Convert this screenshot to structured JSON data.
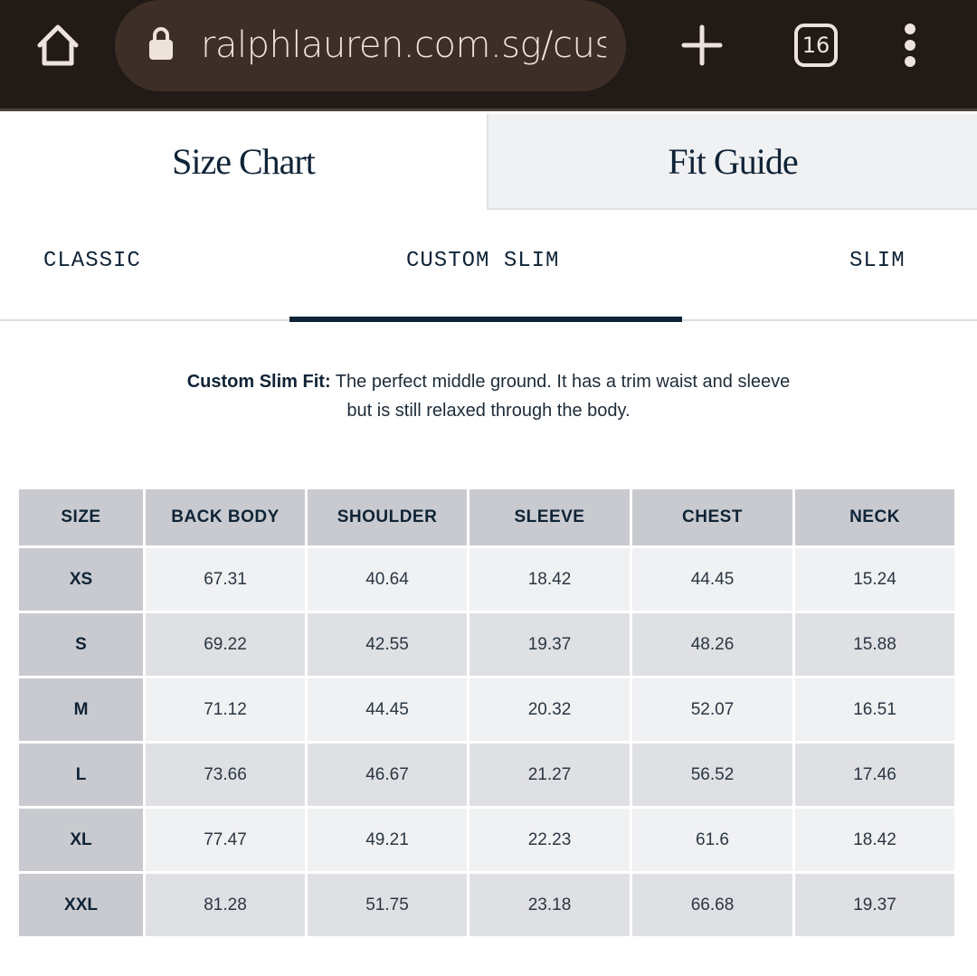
{
  "browser": {
    "url": "ralphlauren.com.sg/custom",
    "tab_count": "16",
    "icons": [
      "home-icon",
      "lock-icon",
      "plus-icon",
      "tabs-icon",
      "more-icon"
    ]
  },
  "tabs": [
    {
      "label": "Size Chart",
      "active": true
    },
    {
      "label": "Fit Guide",
      "active": false
    }
  ],
  "fits": [
    {
      "label": "CLASSIC"
    },
    {
      "label": "CUSTOM SLIM",
      "active": true
    },
    {
      "label": "SLIM"
    }
  ],
  "description": {
    "title": "Custom Slim Fit:",
    "line1": " The perfect middle ground. It has a trim waist and sleeve",
    "line2": "but is still relaxed through the body."
  },
  "table": {
    "headers": [
      "SIZE",
      "BACK BODY",
      "SHOULDER",
      "SLEEVE",
      "CHEST",
      "NECK"
    ],
    "rows": [
      [
        "XS",
        "67.31",
        "40.64",
        "18.42",
        "44.45",
        "15.24"
      ],
      [
        "S",
        "69.22",
        "42.55",
        "19.37",
        "48.26",
        "15.88"
      ],
      [
        "M",
        "71.12",
        "44.45",
        "20.32",
        "52.07",
        "16.51"
      ],
      [
        "L",
        "73.66",
        "46.67",
        "21.27",
        "56.52",
        "17.46"
      ],
      [
        "XL",
        "77.47",
        "49.21",
        "22.23",
        "61.6",
        "18.42"
      ],
      [
        "XXL",
        "81.28",
        "51.75",
        "23.18",
        "66.68",
        "19.37"
      ]
    ]
  },
  "colors": {
    "topbar": "#221a16",
    "accent": "#0f2336",
    "header_cell": "#c8cacf"
  }
}
